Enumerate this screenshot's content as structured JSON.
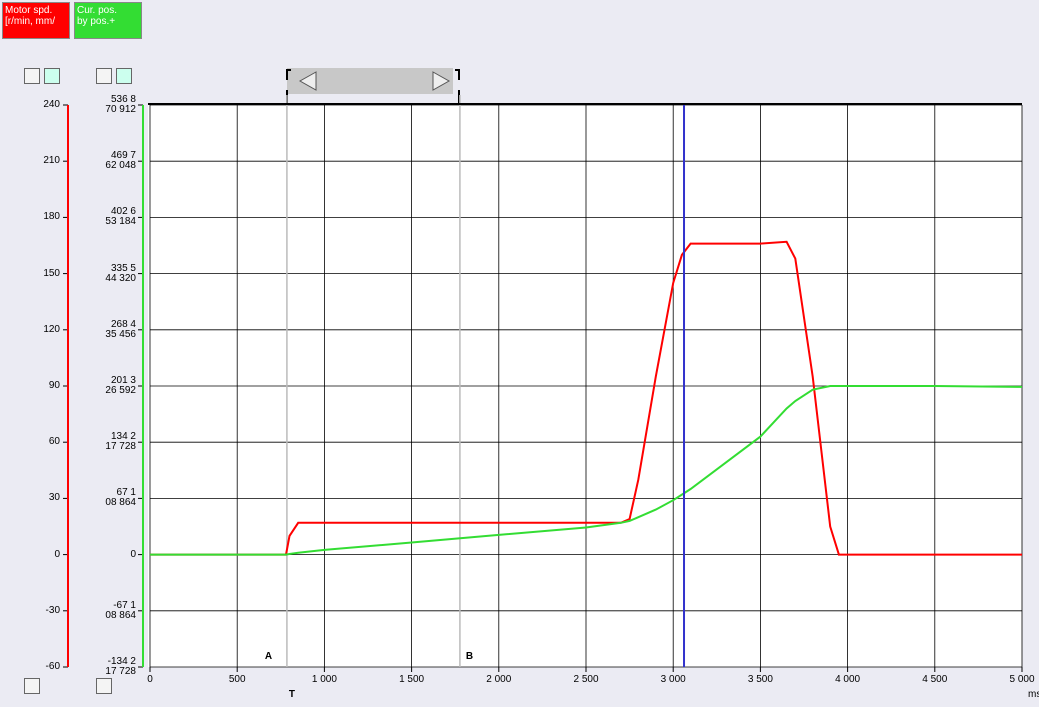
{
  "chart_data": {
    "type": "line",
    "x_unit": "ms",
    "x": [
      0,
      780,
      800,
      850,
      1000,
      1500,
      2000,
      2500,
      2700,
      2750,
      2800,
      2900,
      3000,
      3050,
      3100,
      3500,
      3650,
      3700,
      3800,
      3900,
      3950,
      4000,
      4500,
      5000
    ],
    "series": [
      {
        "name": "Motor spd.\n[r/min, mm/",
        "color": "#ff0000",
        "values": [
          0,
          0,
          10,
          17,
          17,
          17,
          17,
          17,
          17,
          19,
          40,
          95,
          145,
          160,
          166,
          166,
          167,
          158,
          95,
          15,
          0,
          0,
          0,
          0
        ]
      },
      {
        "name": "Cur. pos.\nby pos.+",
        "color": "#33dd33",
        "axis": "y2",
        "values": [
          0,
          0,
          700000,
          2200000,
          5600000,
          14500000,
          23500000,
          32400000,
          38000000,
          40300000,
          44700000,
          53700000,
          64900000,
          71600000,
          78300000,
          140900000,
          174500000,
          183400000,
          196900000,
          201300000,
          201300000,
          201300000,
          201300000,
          200200000
        ]
      }
    ],
    "xlim": [
      0,
      5000
    ],
    "xticks": [
      0,
      500,
      {
        "value": 1000,
        "label": "1 000"
      },
      {
        "value": 1500,
        "label": "1 500"
      },
      {
        "value": 2000,
        "label": "2 000"
      },
      {
        "value": 2500,
        "label": "2 500"
      },
      {
        "value": 3000,
        "label": "3 000"
      },
      {
        "value": 3500,
        "label": "3 500"
      },
      {
        "value": 4000,
        "label": "4 000"
      },
      {
        "value": 4500,
        "label": "4 500"
      },
      {
        "value": 5000,
        "label": "5 000"
      }
    ],
    "ylim": [
      -60,
      240
    ],
    "yticks": [
      -60,
      -30,
      0,
      30,
      60,
      90,
      120,
      150,
      180,
      210,
      240
    ],
    "y2lim": [
      -134217728,
      536870912
    ],
    "y2ticks": [
      {
        "value": -134217728,
        "label": "-134 2\n17 728"
      },
      {
        "value": -67108864,
        "label": "-67 1\n08 864"
      },
      0,
      {
        "value": 67108864,
        "label": "67 1\n08 864"
      },
      {
        "value": 134217728,
        "label": "134 2\n17 728"
      },
      {
        "value": 201326592,
        "label": "201 3\n26 592"
      },
      {
        "value": 268435456,
        "label": "268 4\n35 456"
      },
      {
        "value": 335544320,
        "label": "335 5\n44 320"
      },
      {
        "value": 402653184,
        "label": "402 6\n53 184"
      },
      {
        "value": 469762048,
        "label": "469 7\n62 048"
      },
      {
        "value": 536870912,
        "label": "536 8\n70 912"
      }
    ],
    "grid": true,
    "cursors": [
      {
        "label": "A",
        "marker": "T",
        "x": 785
      },
      {
        "label": "B",
        "x": 1777
      }
    ],
    "measure_cursor": {
      "x": 3062,
      "color": "#3333cc"
    }
  }
}
